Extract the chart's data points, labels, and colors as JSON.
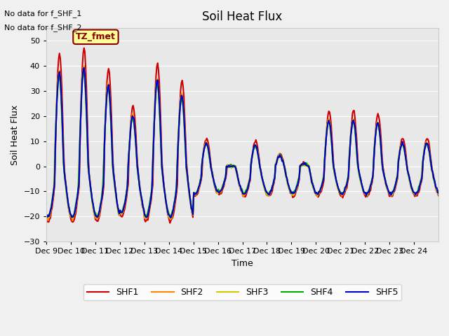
{
  "title": "Soil Heat Flux",
  "ylabel": "Soil Heat Flux",
  "xlabel": "Time",
  "ylim": [
    -30,
    55
  ],
  "yticks": [
    -30,
    -20,
    -10,
    0,
    10,
    20,
    30,
    40,
    50
  ],
  "background_color": "#e8e8e8",
  "plot_bg_color": "#e8e8e8",
  "no_data_text_1": "No data for f_SHF_1",
  "no_data_text_2": "No data for f_SHF_2",
  "annotation_text": "TZ_fmet",
  "annotation_box_color": "#ffff99",
  "annotation_border_color": "#8b0000",
  "series_colors": {
    "SHF1": "#cc0000",
    "SHF2": "#ff8800",
    "SHF3": "#cccc00",
    "SHF4": "#00aa00",
    "SHF5": "#0000cc"
  },
  "line_width": 1.5,
  "x_tick_labels": [
    "Dec 9",
    "Dec 10",
    "Dec 11",
    "Dec 12",
    "Dec 13",
    "Dec 14",
    "Dec 15",
    "Dec 16",
    "Dec 17",
    "Dec 18",
    "Dec 19",
    "Dec 20",
    "Dec 21",
    "Dec 22",
    "Dec 23",
    "Dec 24"
  ],
  "num_points": 480
}
